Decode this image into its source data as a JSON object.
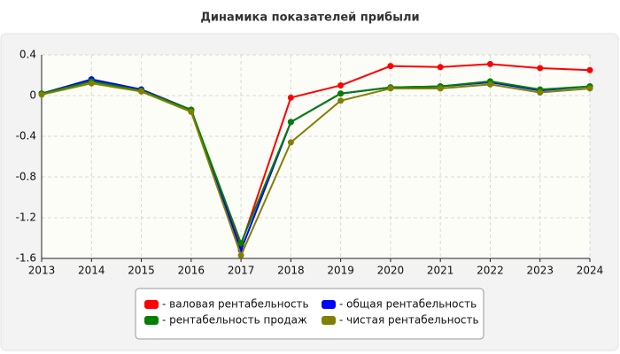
{
  "chart_data": {
    "type": "line",
    "title": "Динамика показателей прибыли",
    "x": [
      2013,
      2014,
      2015,
      2016,
      2017,
      2018,
      2019,
      2020,
      2021,
      2022,
      2023,
      2024
    ],
    "xlim": [
      2013,
      2024
    ],
    "ylim": [
      -1.6,
      0.4
    ],
    "yticks": [
      -1.6,
      -1.2,
      -0.8,
      -0.4,
      0,
      0.4
    ],
    "grid": true,
    "series": [
      {
        "name": "- валовая рентабельность",
        "color": "#ff0000",
        "values": [
          0.02,
          0.15,
          0.06,
          -0.14,
          -1.47,
          -0.02,
          0.1,
          0.29,
          0.28,
          0.31,
          0.27,
          0.25
        ]
      },
      {
        "name": "- общая рентабельность",
        "color": "#0000ff",
        "values": [
          0.02,
          0.16,
          0.06,
          -0.14,
          -1.52,
          -0.26,
          0.02,
          0.08,
          0.09,
          0.13,
          0.05,
          0.09
        ]
      },
      {
        "name": "- рентабельность продаж",
        "color": "#008000",
        "values": [
          0.02,
          0.14,
          0.05,
          -0.14,
          -1.45,
          -0.26,
          0.02,
          0.08,
          0.09,
          0.14,
          0.06,
          0.09
        ]
      },
      {
        "name": "- чистая рентабельность",
        "color": "#808000",
        "values": [
          0.01,
          0.12,
          0.04,
          -0.16,
          -1.57,
          -0.46,
          -0.05,
          0.07,
          0.07,
          0.11,
          0.03,
          0.07
        ]
      }
    ]
  }
}
